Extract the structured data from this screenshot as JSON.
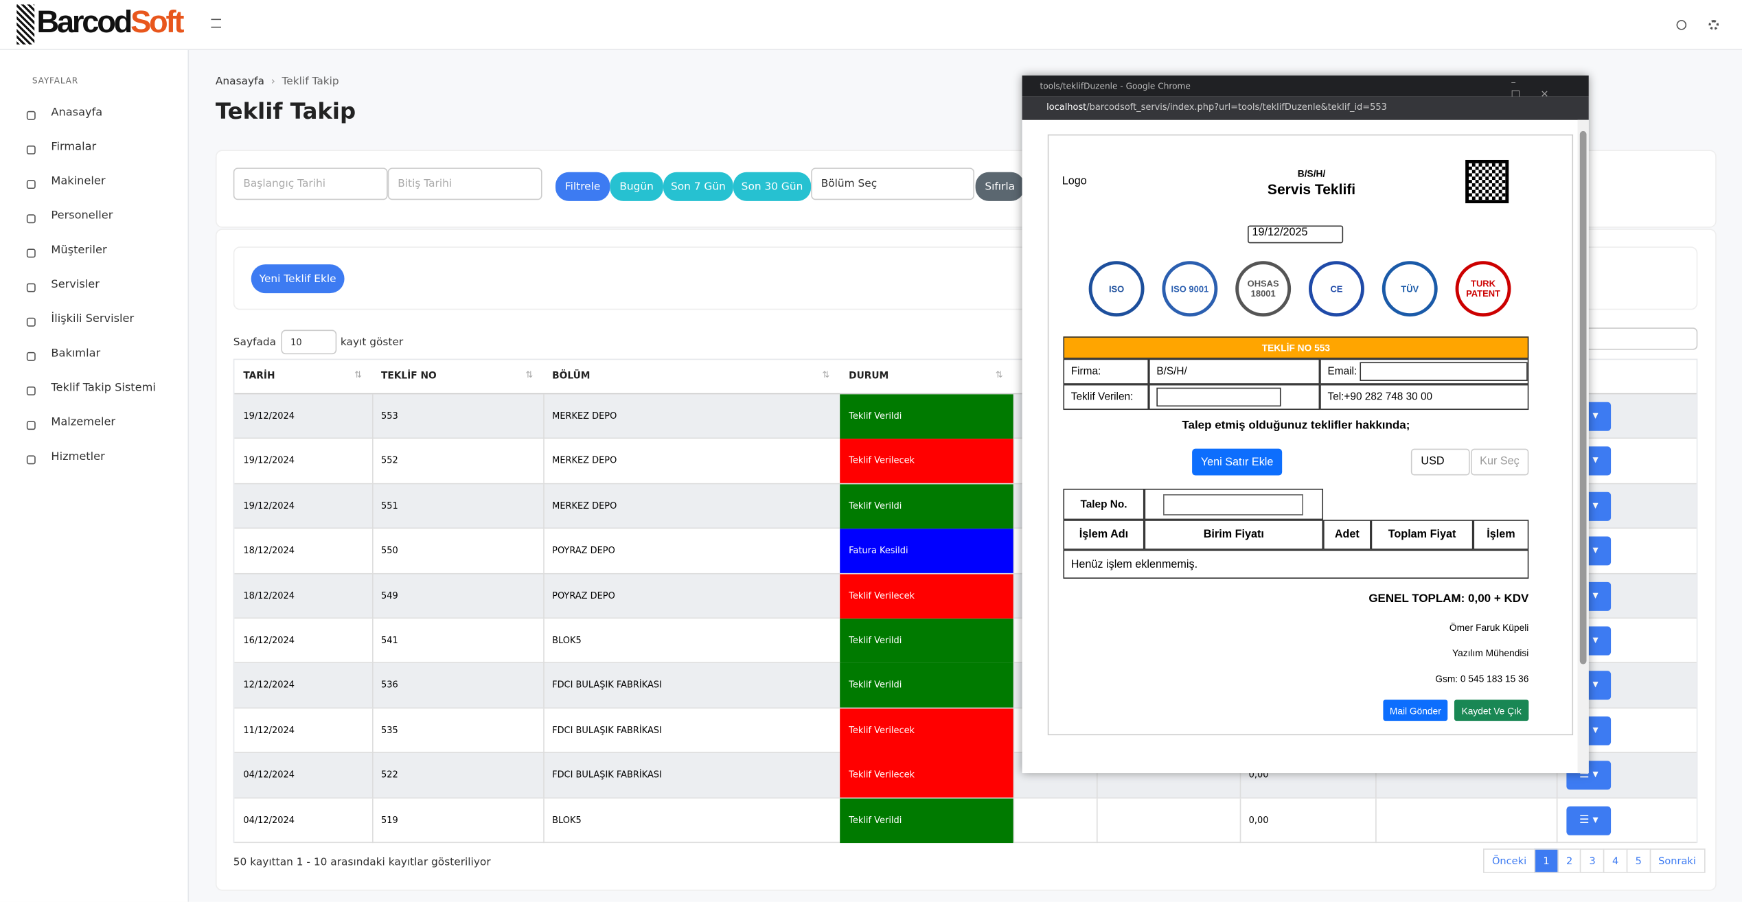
{
  "brand": {
    "left": "Barcod",
    "right": "Soft"
  },
  "sidebar": {
    "section": "SAYFALAR",
    "items": [
      "Anasayfa",
      "Firmalar",
      "Makineler",
      "Personeller",
      "Müşteriler",
      "Servisler",
      "İlişkili Servisler",
      "Bakımlar",
      "Teklif Takip Sistemi",
      "Malzemeler",
      "Hizmetler"
    ]
  },
  "breadcrumb": [
    "Anasayfa",
    "Teklif Takip"
  ],
  "page_title": "Teklif Takip",
  "filters": {
    "start_placeholder": "Başlangıç Tarihi",
    "end_placeholder": "Bitiş Tarihi",
    "buttons": [
      "Filtrele",
      "Bugün",
      "Son 7 Gün",
      "Son 30 Gün"
    ],
    "section_select": "Bölüm Seç",
    "reset": "Sıfırla"
  },
  "new_button": "Yeni Teklif Ekle",
  "length": {
    "prefix": "Sayfada",
    "value": "10",
    "suffix": "kayıt göster"
  },
  "table": {
    "columns": [
      "TARİH",
      "TEKLİF NO",
      "BÖLÜM",
      "DURUM"
    ],
    "rows": [
      {
        "date": "19/12/2024",
        "no": "553",
        "section": "MERKEZ DEPO",
        "status": "Teklif Verildi",
        "color": "#007a00"
      },
      {
        "date": "19/12/2024",
        "no": "552",
        "section": "MERKEZ DEPO",
        "status": "Teklif Verilecek",
        "color": "#ff0000"
      },
      {
        "date": "19/12/2024",
        "no": "551",
        "section": "MERKEZ DEPO",
        "status": "Teklif Verildi",
        "color": "#007a00"
      },
      {
        "date": "18/12/2024",
        "no": "550",
        "section": "POYRAZ DEPO",
        "status": "Fatura Kesildi",
        "color": "#0000ff"
      },
      {
        "date": "18/12/2024",
        "no": "549",
        "section": "POYRAZ DEPO",
        "status": "Teklif Verilecek",
        "color": "#ff0000"
      },
      {
        "date": "16/12/2024",
        "no": "541",
        "section": "BLOK5",
        "status": "Teklif Verildi",
        "color": "#007a00"
      },
      {
        "date": "12/12/2024",
        "no": "536",
        "section": "FDCI BULAŞIK FABRİKASI",
        "status": "Teklif Verildi",
        "color": "#007a00"
      },
      {
        "date": "11/12/2024",
        "no": "535",
        "section": "FDCI BULAŞIK FABRİKASI",
        "status": "Teklif Verilecek",
        "color": "#ff0000"
      },
      {
        "date": "04/12/2024",
        "no": "522",
        "section": "FDCI BULAŞIK FABRİKASI",
        "status": "Teklif Verilecek",
        "color": "#ff0000",
        "amount": "0,00"
      },
      {
        "date": "04/12/2024",
        "no": "519",
        "section": "BLOK5",
        "status": "Teklif Verildi",
        "color": "#007a00",
        "amount": "0,00"
      }
    ]
  },
  "info": "50 kayıttan 1 - 10 arasındaki kayıtlar gösteriliyor",
  "pagination": [
    "Önceki",
    "1",
    "2",
    "3",
    "4",
    "5",
    "Sonraki"
  ],
  "popup": {
    "window_title": "tools/teklifDuzenle - Google Chrome",
    "url_host": "localhost",
    "url_path": "/barcodsoft_servis/index.php?url=tools/teklifDuzenle&teklif_id=553",
    "logo_alt": "Logo",
    "company": "B/S/H/",
    "doc_title": "Servis Teklifi",
    "date": "19/12/2025",
    "certs": [
      "ISO",
      "ISO 9001",
      "OHSAS 18001",
      "CE",
      "TÜV",
      "TURK PATENT"
    ],
    "offer_header": "TEKLİF NO 553",
    "firma_label": "Firma:",
    "firma_value": "B/S/H/",
    "email_label": "Email:",
    "teklif_label": "Teklif Verilen:",
    "tel": "Tel:+90 282 748 30 00",
    "talep_heading": "Talep etmiş olduğunuz teklifler hakkında;",
    "add_row": "Yeni Satır Ekle",
    "currency": "USD",
    "kur_placeholder": "Kur Seç",
    "talep_no": "Talep No.",
    "item_columns": [
      "İşlem Adı",
      "Birim Fiyatı",
      "Adet",
      "Toplam Fiyat",
      "İşlem"
    ],
    "empty": "Henüz işlem eklenmemiş.",
    "total": "GENEL TOPLAM: 0,00 + KDV",
    "signature": [
      "Ömer Faruk Küpeli",
      "Yazılım Mühendisi",
      "Gsm: 0 545 183 15 36"
    ],
    "mail": "Mail Gönder",
    "save": "Kaydet Ve Çık"
  }
}
